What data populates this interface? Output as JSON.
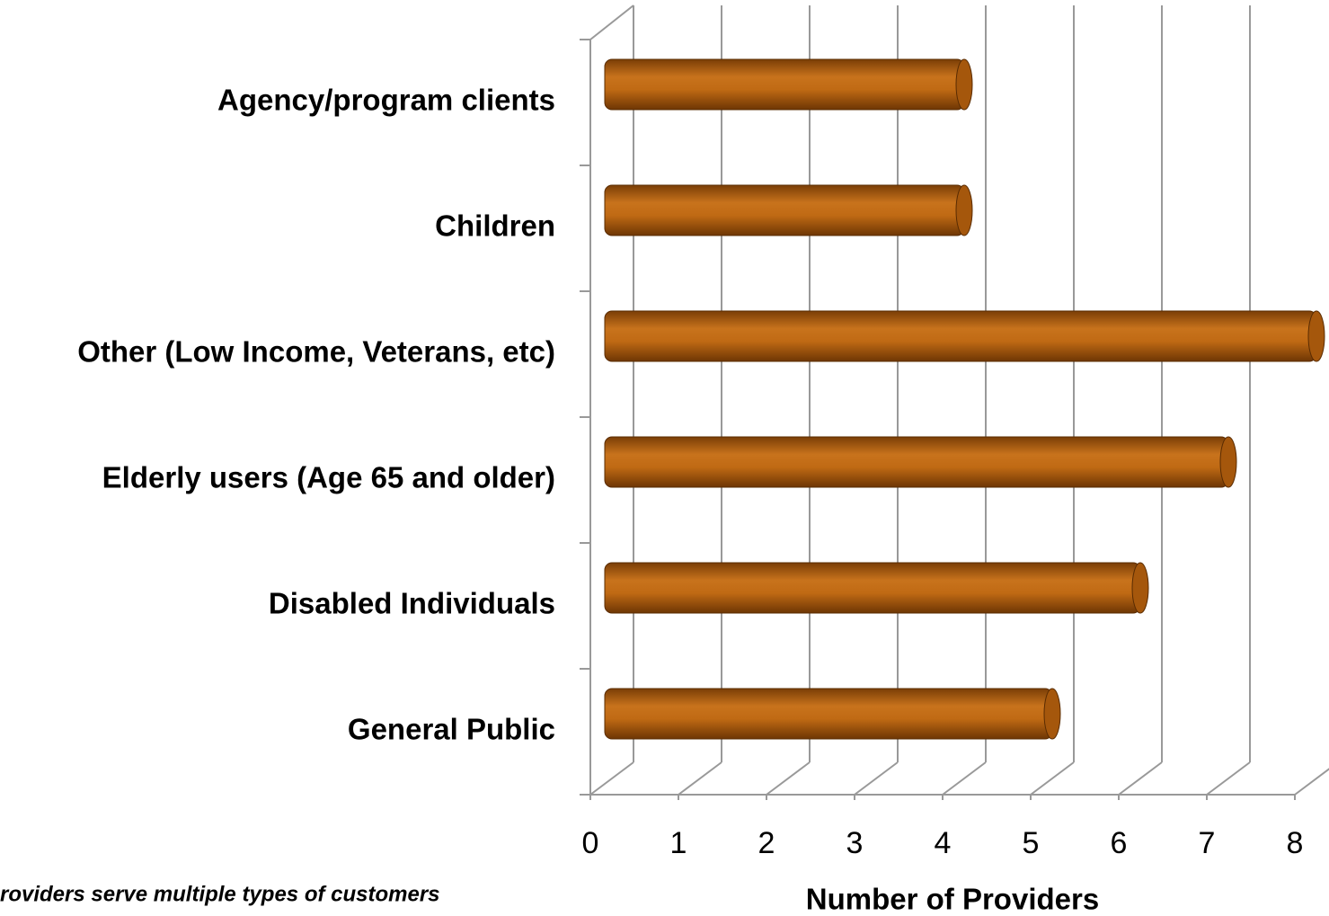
{
  "chart_data": {
    "type": "bar",
    "orientation": "horizontal",
    "categories": [
      "Agency/program clients",
      "Children",
      "Other (Low Income, Veterans, etc)",
      "Elderly users (Age 65 and older)",
      "Disabled Individuals",
      "General Public"
    ],
    "values": [
      4,
      4,
      8,
      7,
      6,
      5
    ],
    "color": "#c06a14",
    "xlim": [
      0,
      8
    ],
    "xticks": [
      0,
      1,
      2,
      3,
      4,
      5,
      6,
      7,
      8
    ],
    "xlabel": "Number of Providers",
    "grid": true,
    "annotation": "roviders serve multiple types of customers"
  }
}
